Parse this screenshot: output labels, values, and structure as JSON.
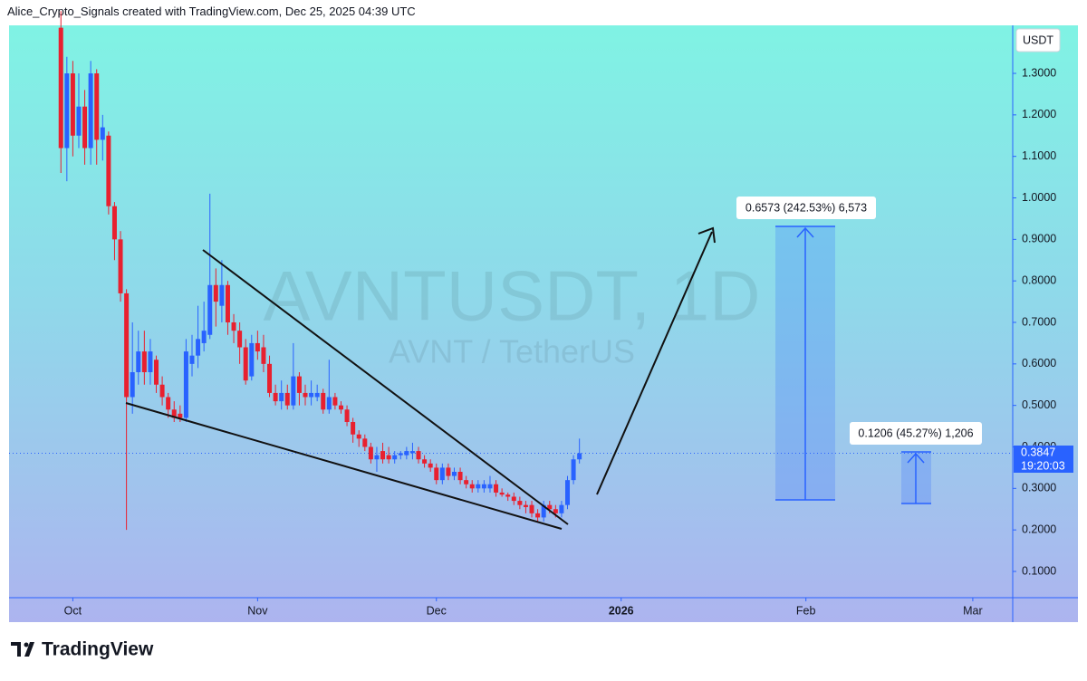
{
  "header": {
    "text": "Alice_Crypto_Signals created with TradingView.com, Dec 25, 2025 04:39 UTC"
  },
  "footer": {
    "brand": "TradingView"
  },
  "chart_data": {
    "type": "candlestick",
    "watermark_symbol": "AVNTUSDT, 1D",
    "watermark_description": "AVNT / TetherUS",
    "currency": "USDT",
    "up_color": "#2962ff",
    "down_color": "#e8202f",
    "ylim": [
      0.0367,
      1.4157
    ],
    "yticks": [
      {
        "value": 0.1,
        "label": "0.1000"
      },
      {
        "value": 0.2,
        "label": "0.2000"
      },
      {
        "value": 0.3,
        "label": "0.3000"
      },
      {
        "value": 0.4,
        "label": "0.4000"
      },
      {
        "value": 0.5,
        "label": "0.5000"
      },
      {
        "value": 0.6,
        "label": "0.6000"
      },
      {
        "value": 0.7,
        "label": "0.7000"
      },
      {
        "value": 0.8,
        "label": "0.8000"
      },
      {
        "value": 0.9,
        "label": "0.9000"
      },
      {
        "value": 1.0,
        "label": "1.0000"
      },
      {
        "value": 1.1,
        "label": "1.1000"
      },
      {
        "value": 1.2,
        "label": "1.2000"
      },
      {
        "value": 1.3,
        "label": "1.3000"
      }
    ],
    "xlim": [
      -8.7,
      159.7
    ],
    "xticks": [
      {
        "value": 2,
        "label": "Oct"
      },
      {
        "value": 33,
        "label": "Nov"
      },
      {
        "value": 63,
        "label": "Dec"
      },
      {
        "value": 94,
        "label": "2026"
      },
      {
        "value": 125,
        "label": "Feb"
      },
      {
        "value": 153,
        "label": "Mar"
      }
    ],
    "open": [
      1.41,
      1.12,
      1.3,
      1.15,
      1.22,
      1.12,
      1.3,
      1.14,
      1.15,
      0.98,
      0.9,
      0.77,
      0.52,
      0.58,
      0.63,
      0.58,
      0.61,
      0.55,
      0.52,
      0.49,
      0.48,
      0.47,
      0.6,
      0.62,
      0.65,
      0.67,
      0.79,
      0.74,
      0.79,
      0.7,
      0.68,
      0.64,
      0.57,
      0.65,
      0.64,
      0.6,
      0.53,
      0.51,
      0.53,
      0.5,
      0.57,
      0.53,
      0.52,
      0.52,
      0.53,
      0.49,
      0.52,
      0.5,
      0.49,
      0.46,
      0.43,
      0.42,
      0.4,
      0.37,
      0.39,
      0.38,
      0.37,
      0.38,
      0.38,
      0.385,
      0.39,
      0.37,
      0.36,
      0.35,
      0.32,
      0.35,
      0.33,
      0.34,
      0.32,
      0.31,
      0.3,
      0.3,
      0.3,
      0.31,
      0.29,
      0.285,
      0.28,
      0.27,
      0.26,
      0.26,
      0.24,
      0.23,
      0.26,
      0.25,
      0.24,
      0.26,
      0.32,
      0.37
    ],
    "high": [
      1.45,
      1.34,
      1.33,
      1.3,
      1.26,
      1.33,
      1.31,
      1.2,
      1.16,
      0.99,
      0.92,
      0.78,
      0.7,
      0.68,
      0.68,
      0.66,
      0.62,
      0.57,
      0.53,
      0.51,
      0.5,
      0.66,
      0.67,
      0.74,
      0.75,
      1.01,
      0.83,
      0.85,
      0.8,
      0.72,
      0.7,
      0.66,
      0.67,
      0.68,
      0.67,
      0.62,
      0.55,
      0.56,
      0.55,
      0.65,
      0.58,
      0.55,
      0.56,
      0.55,
      0.54,
      0.61,
      0.53,
      0.51,
      0.5,
      0.47,
      0.44,
      0.43,
      0.41,
      0.4,
      0.41,
      0.4,
      0.39,
      0.39,
      0.4,
      0.41,
      0.4,
      0.38,
      0.37,
      0.36,
      0.36,
      0.36,
      0.35,
      0.35,
      0.33,
      0.32,
      0.32,
      0.32,
      0.33,
      0.32,
      0.3,
      0.29,
      0.29,
      0.28,
      0.27,
      0.27,
      0.25,
      0.27,
      0.27,
      0.26,
      0.27,
      0.33,
      0.38,
      0.42
    ],
    "low": [
      1.06,
      1.04,
      1.1,
      1.12,
      1.08,
      1.08,
      1.08,
      1.09,
      0.96,
      0.85,
      0.75,
      0.2,
      0.48,
      0.55,
      0.55,
      0.55,
      0.53,
      0.5,
      0.47,
      0.46,
      0.46,
      0.46,
      0.57,
      0.59,
      0.63,
      0.66,
      0.69,
      0.7,
      0.67,
      0.65,
      0.6,
      0.55,
      0.56,
      0.61,
      0.58,
      0.52,
      0.5,
      0.49,
      0.49,
      0.49,
      0.5,
      0.5,
      0.5,
      0.51,
      0.48,
      0.48,
      0.49,
      0.48,
      0.45,
      0.41,
      0.4,
      0.39,
      0.36,
      0.34,
      0.36,
      0.36,
      0.36,
      0.37,
      0.37,
      0.37,
      0.36,
      0.35,
      0.34,
      0.31,
      0.31,
      0.32,
      0.32,
      0.31,
      0.3,
      0.29,
      0.29,
      0.29,
      0.29,
      0.28,
      0.28,
      0.27,
      0.26,
      0.25,
      0.24,
      0.23,
      0.22,
      0.22,
      0.24,
      0.23,
      0.23,
      0.25,
      0.31,
      0.36
    ],
    "close": [
      1.12,
      1.3,
      1.15,
      1.22,
      1.12,
      1.3,
      1.14,
      1.17,
      0.98,
      0.9,
      0.77,
      0.52,
      0.58,
      0.63,
      0.58,
      0.63,
      0.55,
      0.52,
      0.49,
      0.47,
      0.47,
      0.63,
      0.62,
      0.66,
      0.68,
      0.79,
      0.75,
      0.79,
      0.7,
      0.68,
      0.64,
      0.56,
      0.65,
      0.63,
      0.6,
      0.53,
      0.51,
      0.53,
      0.5,
      0.57,
      0.53,
      0.52,
      0.53,
      0.53,
      0.49,
      0.52,
      0.5,
      0.49,
      0.46,
      0.43,
      0.42,
      0.4,
      0.37,
      0.38,
      0.37,
      0.37,
      0.38,
      0.385,
      0.39,
      0.39,
      0.37,
      0.36,
      0.35,
      0.32,
      0.35,
      0.33,
      0.34,
      0.32,
      0.31,
      0.3,
      0.31,
      0.31,
      0.31,
      0.29,
      0.285,
      0.28,
      0.27,
      0.26,
      0.255,
      0.24,
      0.23,
      0.26,
      0.25,
      0.24,
      0.26,
      0.32,
      0.37,
      0.3847
    ],
    "measures": [
      {
        "label": "0.6573 (242.53%) 6,573"
      },
      {
        "label": "0.1206 (45.27%) 1,206"
      }
    ],
    "price_tag": {
      "price": "0.3847",
      "countdown": "19:20:03"
    }
  }
}
